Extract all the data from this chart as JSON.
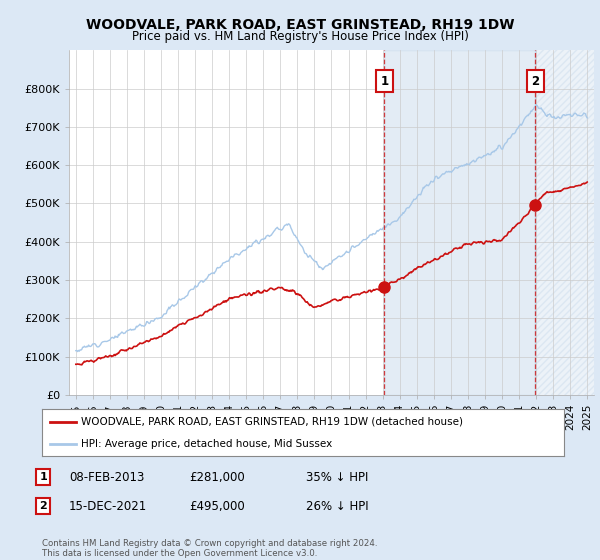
{
  "title": "WOODVALE, PARK ROAD, EAST GRINSTEAD, RH19 1DW",
  "subtitle": "Price paid vs. HM Land Registry's House Price Index (HPI)",
  "hpi_color": "#a8c8e8",
  "price_color": "#cc1111",
  "marker1_date": 2013.1,
  "marker1_price": 281000,
  "marker2_date": 2021.96,
  "marker2_price": 495000,
  "legend_label1": "WOODVALE, PARK ROAD, EAST GRINSTEAD, RH19 1DW (detached house)",
  "legend_label2": "HPI: Average price, detached house, Mid Sussex",
  "footer": "Contains HM Land Registry data © Crown copyright and database right 2024.\nThis data is licensed under the Open Government Licence v3.0.",
  "ylim": [
    0,
    900000
  ],
  "yticks": [
    0,
    100000,
    200000,
    300000,
    400000,
    500000,
    600000,
    700000,
    800000
  ],
  "ytick_labels": [
    "£0",
    "£100K",
    "£200K",
    "£300K",
    "£400K",
    "£500K",
    "£600K",
    "£700K",
    "£800K"
  ],
  "background_color": "#dce8f5",
  "plot_bg": "#ffffff",
  "shade_color": "#dce8f5",
  "xlim_start": 1994.6,
  "xlim_end": 2025.4
}
